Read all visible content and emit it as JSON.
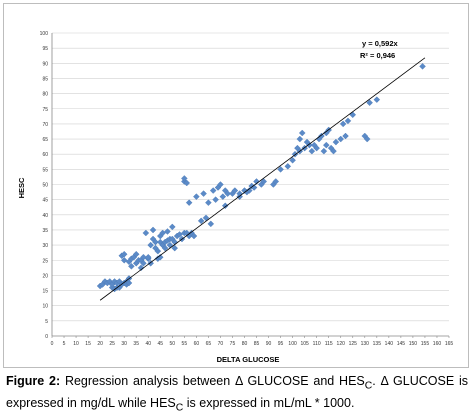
{
  "chart_data": {
    "type": "scatter",
    "title": "",
    "xlabel": "DELTA GLUCOSE",
    "ylabel": "HESC",
    "xlim": [
      0,
      165
    ],
    "ylim": [
      0,
      100
    ],
    "x_ticks": [
      0,
      5,
      10,
      15,
      20,
      25,
      30,
      35,
      40,
      45,
      50,
      55,
      60,
      65,
      70,
      75,
      80,
      85,
      90,
      95,
      100,
      105,
      110,
      115,
      120,
      125,
      130,
      135,
      140,
      145,
      150,
      155,
      160,
      165
    ],
    "y_ticks": [
      0,
      5,
      10,
      15,
      20,
      25,
      30,
      35,
      40,
      45,
      50,
      55,
      60,
      65,
      70,
      75,
      80,
      85,
      90,
      95,
      100
    ],
    "grid": "horizontal",
    "marker_color": "#5b8ac7",
    "trendline": {
      "equation": "y = 0,592x",
      "r2": "R² = 0,946",
      "x_start": 20,
      "x_end": 155,
      "y_start": 11.8,
      "y_end": 91.8
    },
    "points": [
      [
        20,
        16.5
      ],
      [
        21,
        17
      ],
      [
        22,
        18
      ],
      [
        23,
        17.5
      ],
      [
        24,
        18
      ],
      [
        25,
        16
      ],
      [
        25,
        17
      ],
      [
        26,
        15.5
      ],
      [
        26,
        18
      ],
      [
        27,
        16
      ],
      [
        27,
        17.5
      ],
      [
        28,
        16
      ],
      [
        28,
        18
      ],
      [
        29,
        26.5
      ],
      [
        29,
        17
      ],
      [
        30,
        25
      ],
      [
        30,
        27
      ],
      [
        30,
        17.5
      ],
      [
        31,
        18
      ],
      [
        31,
        17
      ],
      [
        32,
        17.5
      ],
      [
        32,
        19
      ],
      [
        32,
        24.5
      ],
      [
        33,
        23
      ],
      [
        33,
        25.5
      ],
      [
        34,
        26
      ],
      [
        35,
        27
      ],
      [
        35,
        24
      ],
      [
        36,
        25
      ],
      [
        37,
        22.5
      ],
      [
        37,
        25
      ],
      [
        38,
        24
      ],
      [
        38,
        26
      ],
      [
        39,
        34
      ],
      [
        40,
        25.5
      ],
      [
        40,
        26
      ],
      [
        41,
        24
      ],
      [
        41,
        30
      ],
      [
        42,
        35
      ],
      [
        42,
        32
      ],
      [
        43,
        31
      ],
      [
        43,
        29
      ],
      [
        44,
        25.5
      ],
      [
        44,
        28
      ],
      [
        45,
        31
      ],
      [
        45,
        33
      ],
      [
        45,
        26
      ],
      [
        46,
        30
      ],
      [
        46,
        34
      ],
      [
        47,
        29
      ],
      [
        47,
        31
      ],
      [
        48,
        31.5
      ],
      [
        48,
        34.5
      ],
      [
        49,
        30
      ],
      [
        49,
        32
      ],
      [
        50,
        32
      ],
      [
        50,
        36
      ],
      [
        51,
        29
      ],
      [
        51,
        31
      ],
      [
        52,
        33
      ],
      [
        53,
        33.5
      ],
      [
        54,
        32
      ],
      [
        55,
        34
      ],
      [
        55,
        51
      ],
      [
        55,
        52
      ],
      [
        56,
        50.5
      ],
      [
        56,
        34
      ],
      [
        57,
        33
      ],
      [
        57,
        44
      ],
      [
        58,
        34
      ],
      [
        59,
        33
      ],
      [
        60,
        46
      ],
      [
        62,
        38
      ],
      [
        63,
        47
      ],
      [
        64,
        39
      ],
      [
        65,
        44
      ],
      [
        66,
        37
      ],
      [
        67,
        48
      ],
      [
        68,
        45
      ],
      [
        69,
        49
      ],
      [
        70,
        50
      ],
      [
        71,
        46
      ],
      [
        72,
        43
      ],
      [
        72,
        48
      ],
      [
        73,
        47
      ],
      [
        75,
        47
      ],
      [
        76,
        48
      ],
      [
        78,
        46
      ],
      [
        78,
        47
      ],
      [
        80,
        48
      ],
      [
        81,
        47.5
      ],
      [
        82,
        48
      ],
      [
        83,
        49.5
      ],
      [
        84,
        49
      ],
      [
        85,
        51
      ],
      [
        87,
        50
      ],
      [
        88,
        51
      ],
      [
        92,
        50
      ],
      [
        93,
        51
      ],
      [
        95,
        55
      ],
      [
        98,
        56
      ],
      [
        100,
        58
      ],
      [
        101,
        60
      ],
      [
        102,
        62
      ],
      [
        103,
        61
      ],
      [
        103,
        65
      ],
      [
        104,
        67
      ],
      [
        105,
        62
      ],
      [
        106,
        64
      ],
      [
        107,
        63
      ],
      [
        108,
        61
      ],
      [
        109,
        63
      ],
      [
        110,
        62
      ],
      [
        111,
        65
      ],
      [
        112,
        66
      ],
      [
        113,
        61
      ],
      [
        114,
        67
      ],
      [
        114,
        63
      ],
      [
        115,
        68
      ],
      [
        116,
        62
      ],
      [
        117,
        61
      ],
      [
        118,
        64
      ],
      [
        120,
        65
      ],
      [
        121,
        70
      ],
      [
        122,
        66
      ],
      [
        123,
        71
      ],
      [
        125,
        73
      ],
      [
        130,
        66
      ],
      [
        131,
        65
      ],
      [
        132,
        77
      ],
      [
        135,
        78
      ],
      [
        154,
        89
      ]
    ]
  },
  "caption": {
    "figure_label": "Figure 2:",
    "part1": "Regression analysis between Δ GLUCOSE and HES",
    "sub1": "C",
    "part2": ". Δ GLUCOSE is expressed in mg/dL while HES",
    "sub2": "C",
    "part3": " is expressed in mL/mL * 1000."
  }
}
